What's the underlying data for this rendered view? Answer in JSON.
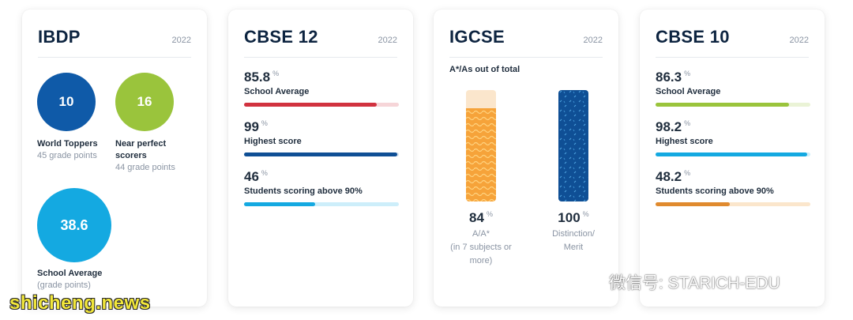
{
  "cards": {
    "ibdp": {
      "title": "IBDP",
      "year": "2022",
      "world_toppers": {
        "value": "10",
        "label": "World Toppers",
        "sub": "45 grade points",
        "color": "#0f5aa8"
      },
      "near_perfect": {
        "value": "16",
        "label_line1": "Near perfect",
        "label_line2": "scorers",
        "sub": "44 grade points",
        "color": "#9ac43c"
      },
      "school_average": {
        "value": "38.6",
        "label": "School Average",
        "sub": "(grade points)",
        "color": "#14a9e1"
      }
    },
    "cbse12": {
      "title": "CBSE 12",
      "year": "2022",
      "metrics": [
        {
          "value": "85.8",
          "unit": "%",
          "label": "School Average",
          "fill_fraction": 0.858,
          "fill_color": "#d1323f",
          "track_color": "#f6d5d8"
        },
        {
          "value": "99",
          "unit": "%",
          "label": "Highest score",
          "fill_fraction": 0.99,
          "fill_color": "#0f4f95",
          "track_color": "#d3e0ee"
        },
        {
          "value": "46",
          "unit": "%",
          "label": "Students scoring above 90%",
          "fill_fraction": 0.46,
          "fill_color": "#14a9e1",
          "track_color": "#cdeefa"
        }
      ]
    },
    "igcse": {
      "title": "IGCSE",
      "year": "2022",
      "subtitle": "A*/As out of total",
      "left": {
        "value": "84",
        "unit": "%",
        "cap_line1": "A/A*",
        "cap_line2": "(in 7 subjects or",
        "cap_line3": "more)",
        "fill_fraction": 0.84,
        "fill_color": "#f6a33a",
        "track_color": "#fbe6cc"
      },
      "right": {
        "value": "100",
        "unit": "%",
        "cap_line1": "Distinction/",
        "cap_line2": "Merit",
        "fill_fraction": 1.0,
        "fill_color": "#0f4f95"
      }
    },
    "cbse10": {
      "title": "CBSE 10",
      "year": "2022",
      "metrics": [
        {
          "value": "86.3",
          "unit": "%",
          "label": "School Average",
          "fill_fraction": 0.863,
          "fill_color": "#9ac43c",
          "track_color": "#eaf3d6"
        },
        {
          "value": "98.2",
          "unit": "%",
          "label": "Highest score",
          "fill_fraction": 0.982,
          "fill_color": "#14a9e1",
          "track_color": "#cdeefa"
        },
        {
          "value": "48.2",
          "unit": "%",
          "label": "Students scoring above 90%",
          "fill_fraction": 0.482,
          "fill_color": "#e08a2e",
          "track_color": "#fbe6cc"
        }
      ]
    }
  },
  "watermarks": {
    "site": "shicheng.news",
    "wechat": "微信号: STARICH-EDU",
    "wechat_icon": "wechat-icon"
  }
}
